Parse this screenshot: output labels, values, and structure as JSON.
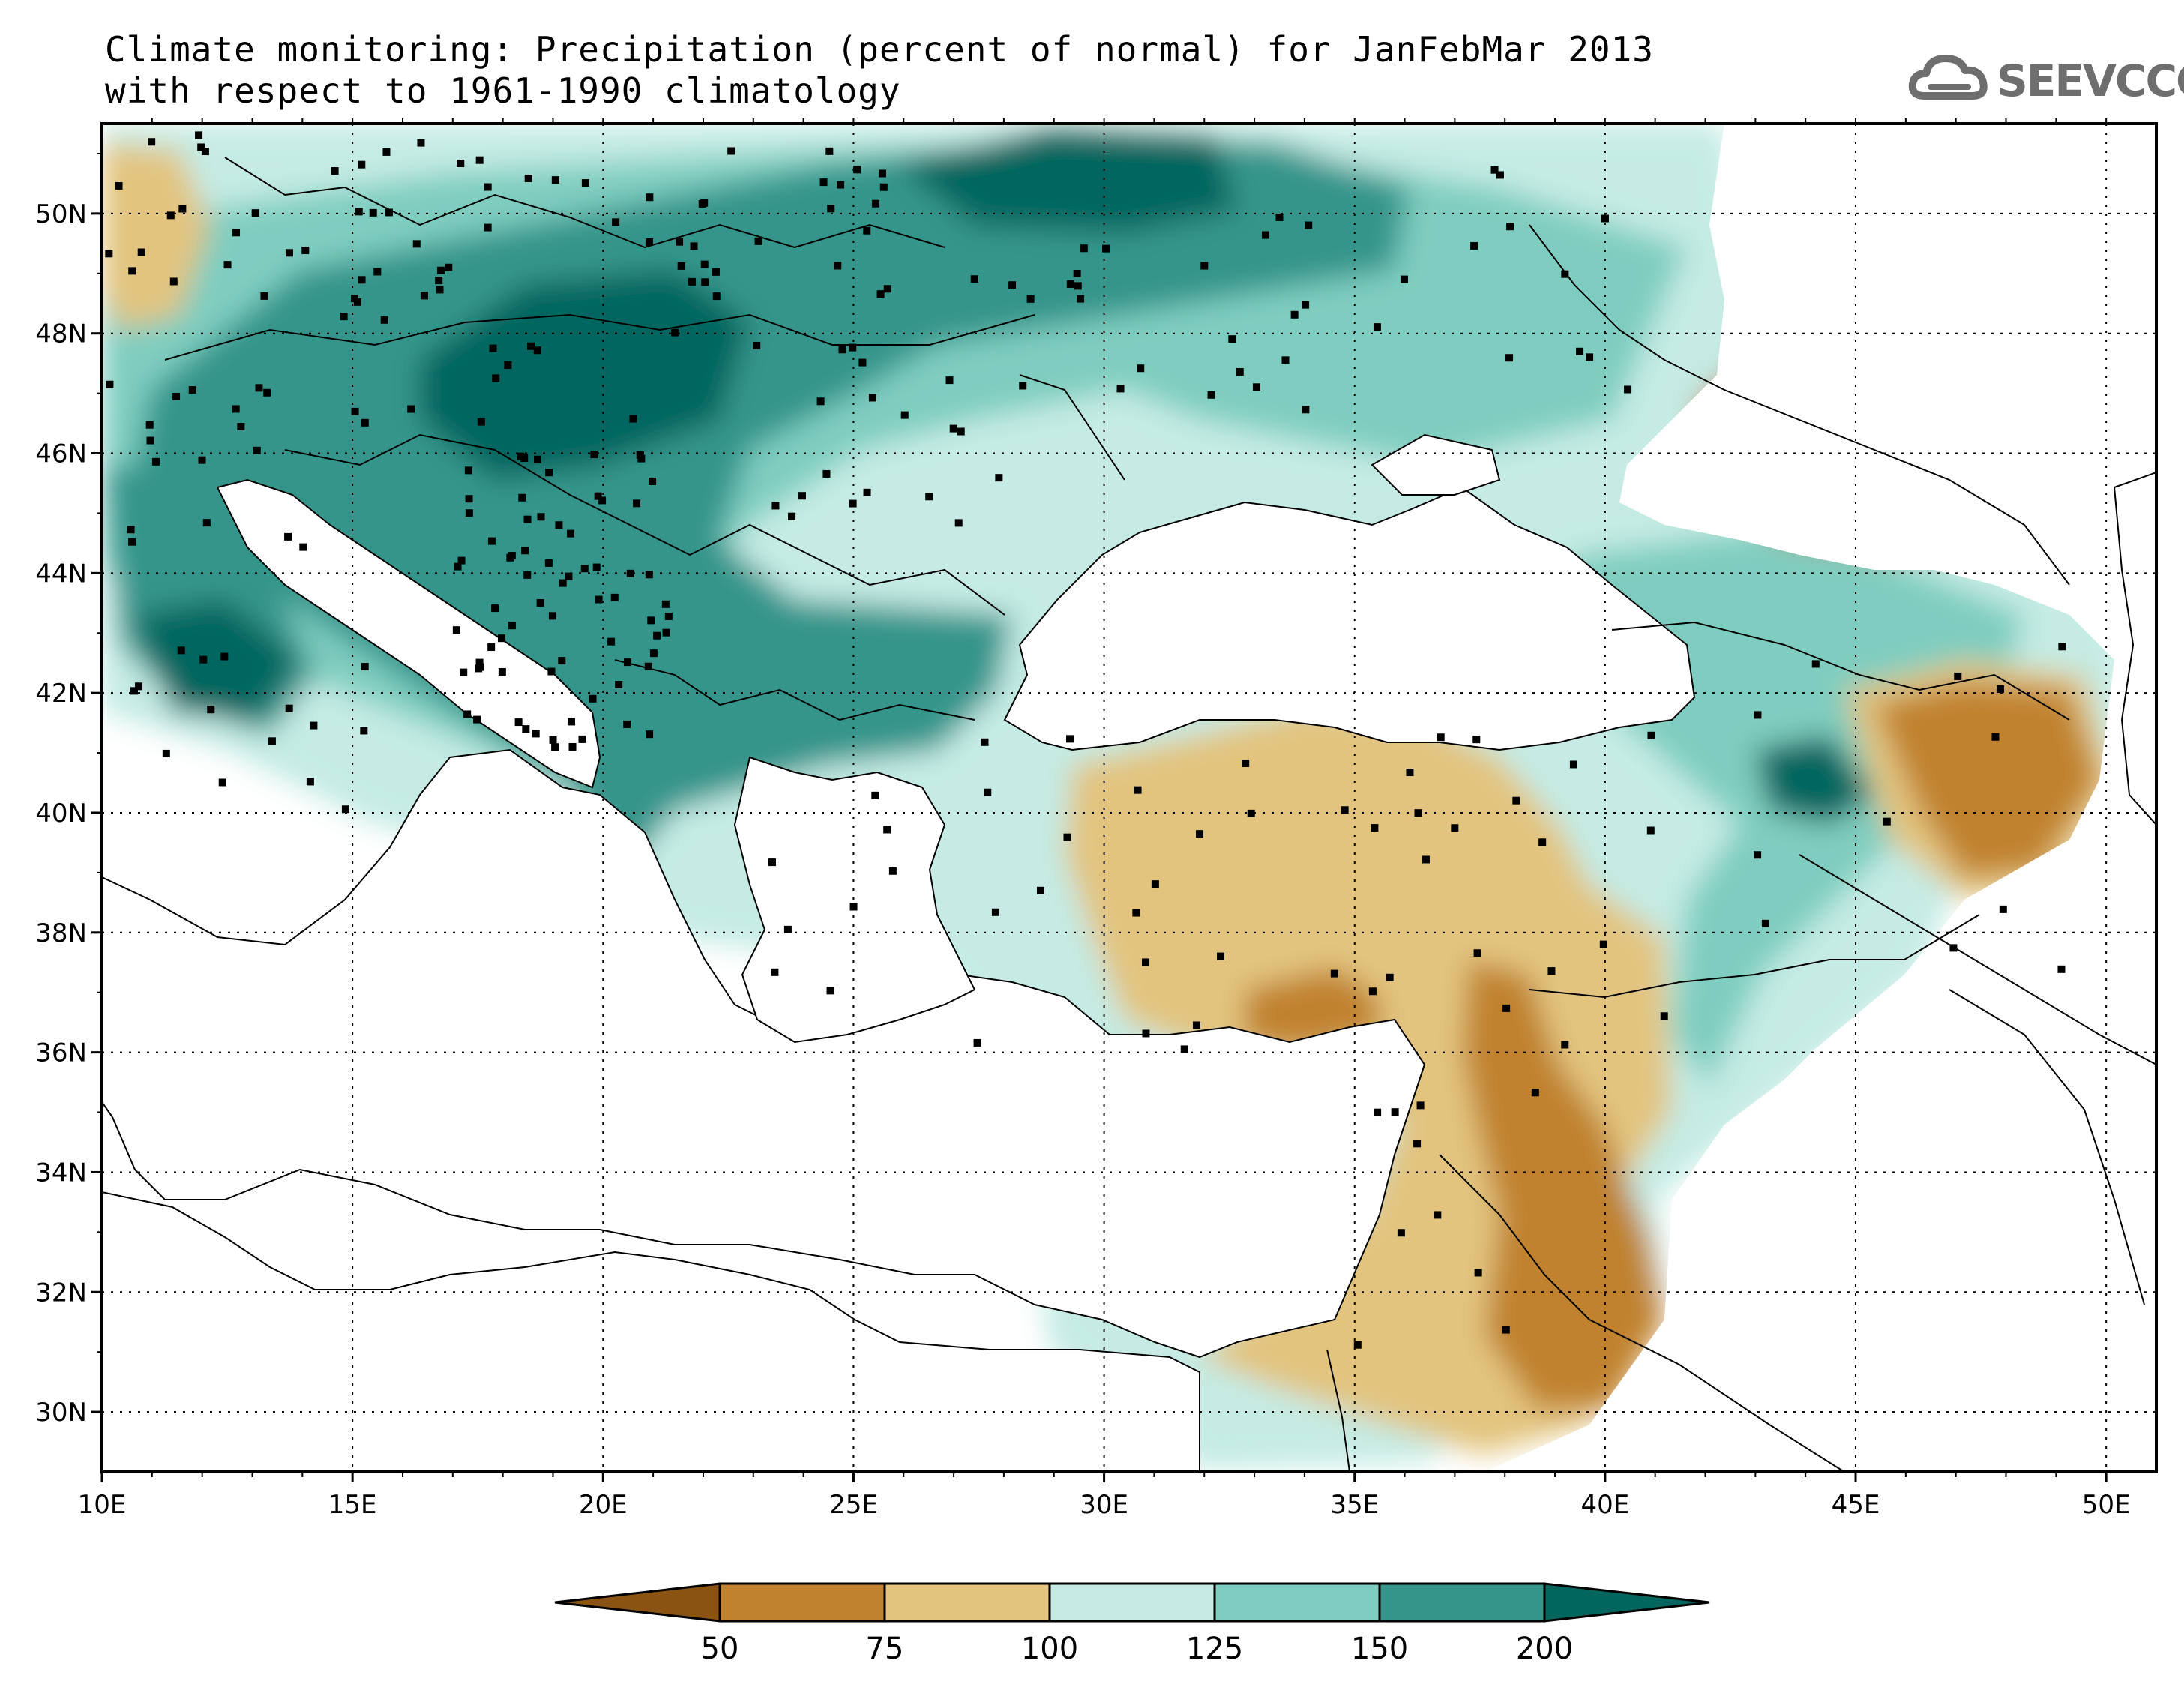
{
  "title": {
    "line1": "Climate monitoring: Precipitation (percent of normal) for JanFebMar 2013",
    "line2": "with respect to 1961-1990 climatology"
  },
  "logo": {
    "text": "SEEVCCC",
    "icon": "cloud-icon",
    "color": "#6e6e6e"
  },
  "map": {
    "lon_range": [
      10,
      51
    ],
    "lat_range": [
      29,
      51.5
    ],
    "lon_ticks": [
      "10E",
      "15E",
      "20E",
      "25E",
      "30E",
      "35E",
      "40E",
      "45E",
      "50E"
    ],
    "lat_ticks": [
      "30N",
      "32N",
      "34N",
      "36N",
      "38N",
      "40N",
      "42N",
      "44N",
      "46N",
      "48N",
      "50N"
    ],
    "grid": "dotted"
  },
  "colorbar": {
    "labels": [
      "50",
      "75",
      "100",
      "125",
      "150",
      "200"
    ],
    "colors": [
      "#8b5311",
      "#c0822e",
      "#e2c47f",
      "#c5ebe4",
      "#7fcdc0",
      "#35958b",
      "#00665e"
    ]
  }
}
